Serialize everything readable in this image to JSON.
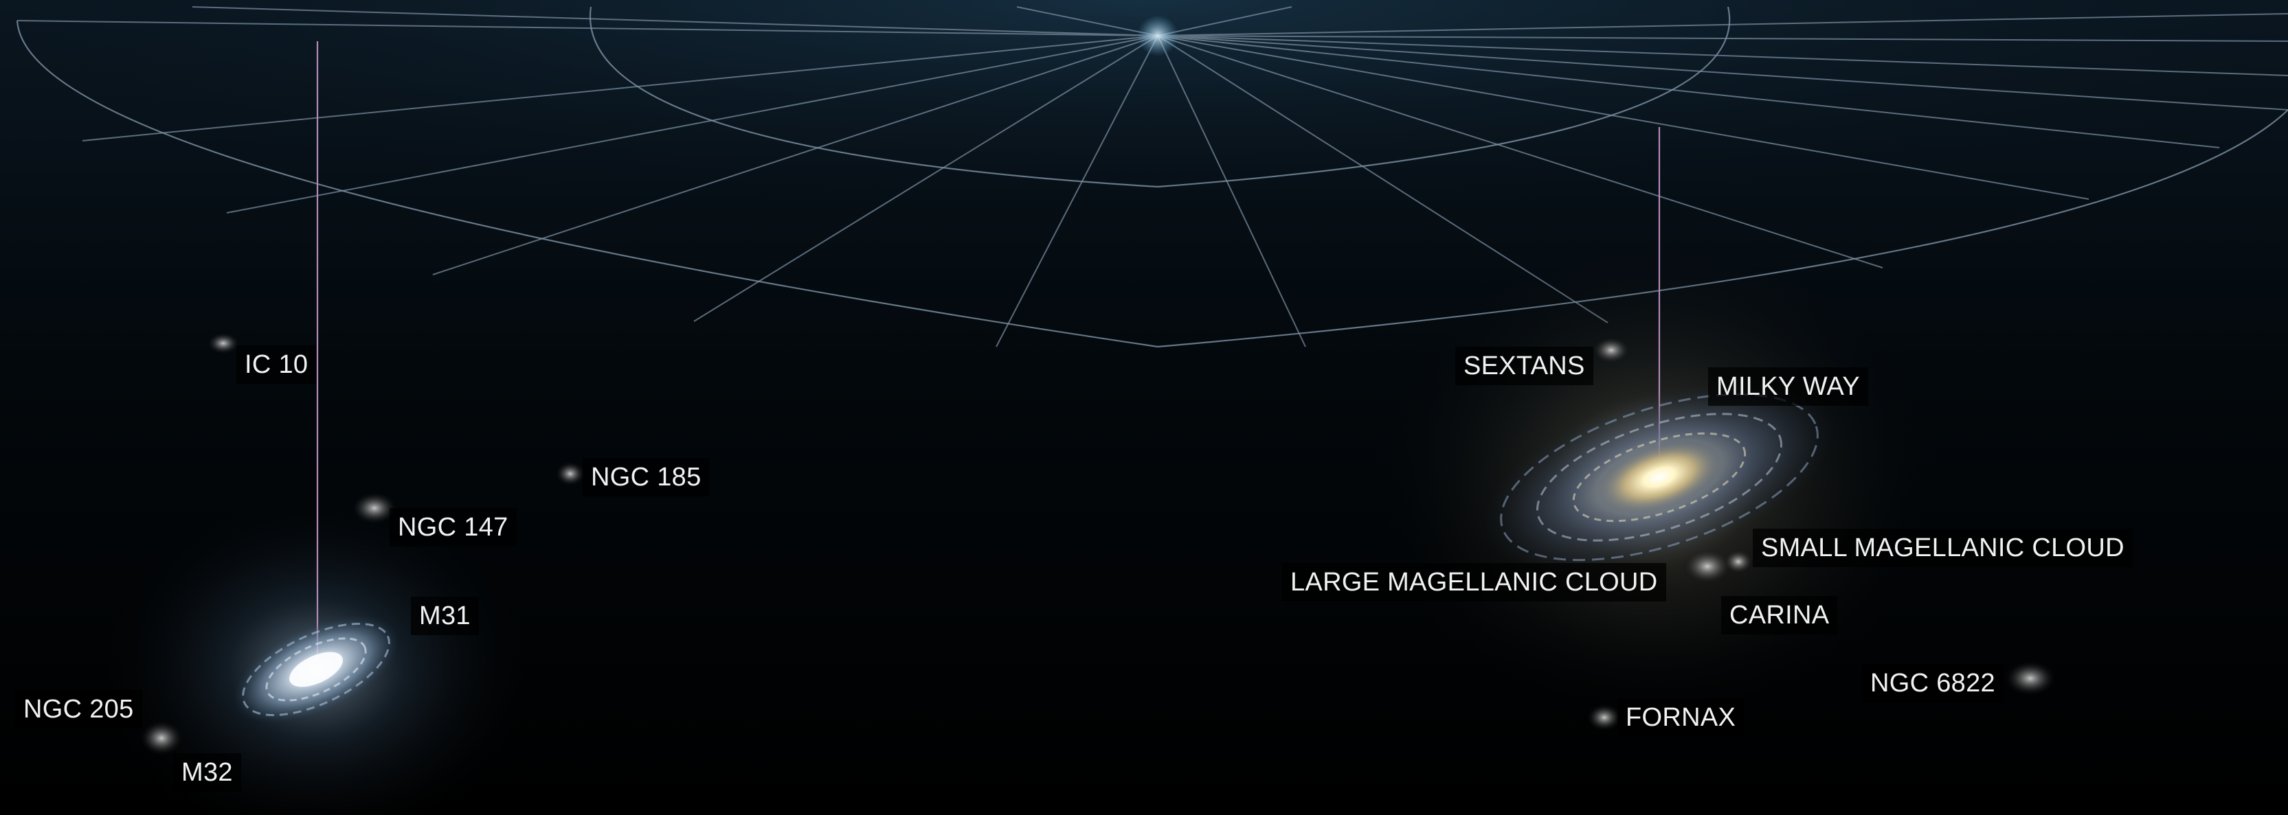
{
  "labels": {
    "ic10": "IC 10",
    "ngc185": "NGC 185",
    "ngc147": "NGC 147",
    "m31": "M31",
    "ngc205": "NGC 205",
    "m32": "M32",
    "sextans": "SEXTANS",
    "milky_way": "MILKY WAY",
    "smc": "SMALL MAGELLANIC CLOUD",
    "lmc": "LARGE MAGELLANIC CLOUD",
    "carina": "CARINA",
    "ngc6822": "NGC 6822",
    "fornax": "FORNAX"
  },
  "colors": {
    "background": "#000000",
    "grid_line": "#7f93a6",
    "pointer_line": "#b58ab8",
    "label_text": "#f2f2f2"
  }
}
